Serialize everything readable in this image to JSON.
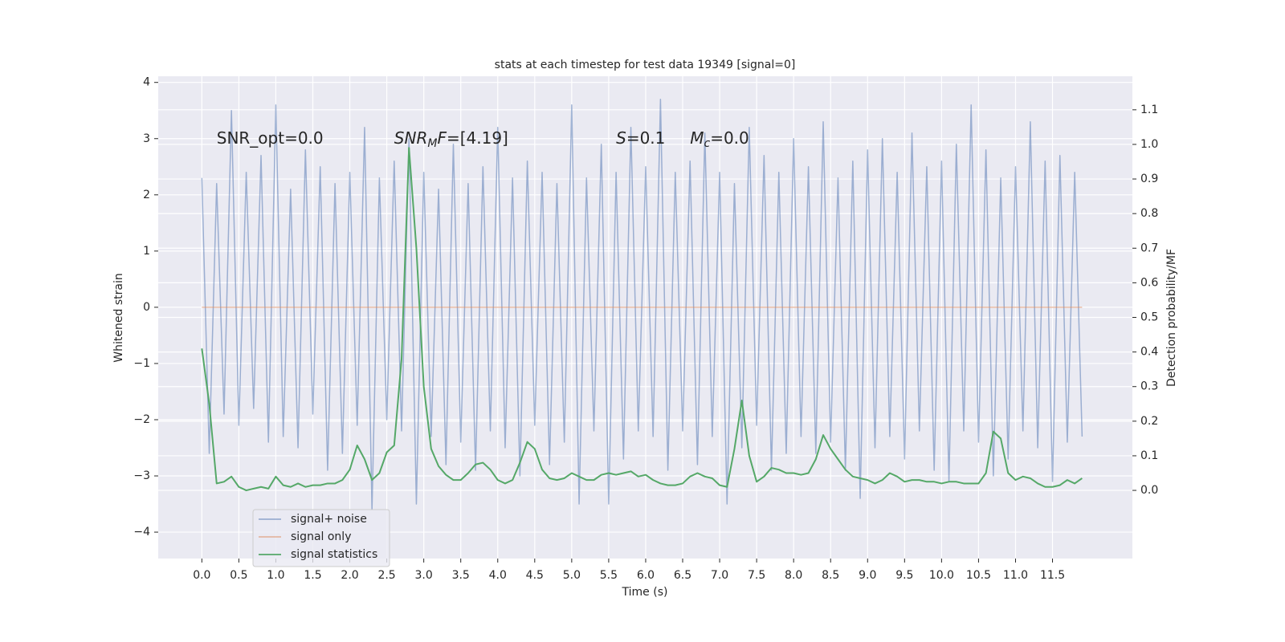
{
  "chart_data": {
    "type": "line",
    "title": "stats at each timestep for test data 19349 [signal=0]",
    "xlabel": "Time (s)",
    "ylabel": "Whitened strain",
    "y2label": "Detection probability/MF",
    "x": [
      0.0,
      0.1,
      0.2,
      0.3,
      0.4,
      0.5,
      0.6,
      0.7,
      0.8,
      0.9,
      1.0,
      1.1,
      1.2,
      1.3,
      1.4,
      1.5,
      1.6,
      1.7,
      1.8,
      1.9,
      2.0,
      2.1,
      2.2,
      2.3,
      2.4,
      2.5,
      2.6,
      2.7,
      2.8,
      2.9,
      3.0,
      3.1,
      3.2,
      3.3,
      3.4,
      3.5,
      3.6,
      3.7,
      3.8,
      3.9,
      4.0,
      4.1,
      4.2,
      4.3,
      4.4,
      4.5,
      4.6,
      4.7,
      4.8,
      4.9,
      5.0,
      5.1,
      5.2,
      5.3,
      5.4,
      5.5,
      5.6,
      5.7,
      5.8,
      5.9,
      6.0,
      6.1,
      6.2,
      6.3,
      6.4,
      6.5,
      6.6,
      6.7,
      6.8,
      6.9,
      7.0,
      7.1,
      7.2,
      7.3,
      7.4,
      7.5,
      7.6,
      7.7,
      7.8,
      7.9,
      8.0,
      8.1,
      8.2,
      8.3,
      8.4,
      8.5,
      8.6,
      8.7,
      8.8,
      8.9,
      9.0,
      9.1,
      9.2,
      9.3,
      9.4,
      9.5,
      9.6,
      9.7,
      9.8,
      9.9,
      10.0,
      10.1,
      10.2,
      10.3,
      10.4,
      10.5,
      10.6,
      10.7,
      10.8,
      10.9,
      11.0,
      11.1,
      11.2,
      11.3,
      11.4,
      11.5,
      11.6,
      11.7,
      11.8,
      11.9
    ],
    "series": [
      {
        "name": "signal+ noise",
        "color": "#4c72b0",
        "opacity": 0.5,
        "values": [
          2.3,
          -2.6,
          2.2,
          -1.9,
          3.5,
          -2.1,
          2.4,
          -1.8,
          2.7,
          -2.4,
          3.6,
          -2.3,
          2.1,
          -2.5,
          2.8,
          -1.9,
          2.5,
          -2.9,
          2.2,
          -2.6,
          2.4,
          -2.1,
          3.2,
          -3.6,
          2.3,
          -2.0,
          2.6,
          -2.2,
          3.0,
          -3.5,
          2.4,
          -2.3,
          2.1,
          -2.8,
          2.9,
          -2.4,
          2.2,
          -2.9,
          2.5,
          -2.2,
          3.2,
          -2.5,
          2.3,
          -3.0,
          2.6,
          -2.1,
          2.4,
          -2.8,
          2.2,
          -2.4,
          3.6,
          -3.5,
          2.3,
          -2.2,
          2.9,
          -3.5,
          2.4,
          -2.7,
          3.2,
          -2.2,
          2.5,
          -2.3,
          3.7,
          -2.9,
          2.4,
          -2.2,
          2.6,
          -2.8,
          3.1,
          -2.3,
          2.4,
          -3.5,
          2.2,
          -2.5,
          3.2,
          -2.1,
          2.7,
          -2.9,
          2.4,
          -2.6,
          3.0,
          -2.3,
          2.5,
          -2.6,
          3.3,
          -2.4,
          2.3,
          -2.9,
          2.6,
          -3.4,
          2.8,
          -2.5,
          3.0,
          -2.3,
          2.4,
          -2.7,
          3.1,
          -2.2,
          2.5,
          -2.9,
          2.6,
          -3.1,
          2.9,
          -2.2,
          3.6,
          -2.4,
          2.8,
          -3.0,
          2.3,
          -2.7,
          2.5,
          -2.2,
          3.3,
          -2.5,
          2.6,
          -3.1,
          2.7,
          -2.4,
          2.4,
          -2.3
        ]
      },
      {
        "name": "signal only",
        "color": "#dd8452",
        "opacity": 0.5,
        "x": [
          0.0,
          11.9
        ],
        "values": [
          0,
          0
        ]
      },
      {
        "name": "signal statistics",
        "color": "#55a868",
        "opacity": 1,
        "axis": "y2",
        "values": [
          0.41,
          0.25,
          0.02,
          0.025,
          0.04,
          0.01,
          0.0,
          0.005,
          0.01,
          0.005,
          0.04,
          0.015,
          0.01,
          0.02,
          0.01,
          0.015,
          0.015,
          0.02,
          0.02,
          0.03,
          0.06,
          0.13,
          0.09,
          0.03,
          0.05,
          0.11,
          0.13,
          0.38,
          0.99,
          0.7,
          0.3,
          0.12,
          0.07,
          0.045,
          0.03,
          0.03,
          0.05,
          0.075,
          0.08,
          0.06,
          0.03,
          0.02,
          0.03,
          0.08,
          0.14,
          0.12,
          0.06,
          0.035,
          0.03,
          0.035,
          0.05,
          0.04,
          0.03,
          0.03,
          0.045,
          0.05,
          0.045,
          0.05,
          0.055,
          0.04,
          0.045,
          0.03,
          0.02,
          0.015,
          0.015,
          0.02,
          0.04,
          0.05,
          0.04,
          0.035,
          0.015,
          0.01,
          0.12,
          0.26,
          0.1,
          0.025,
          0.04,
          0.065,
          0.06,
          0.05,
          0.05,
          0.045,
          0.05,
          0.09,
          0.16,
          0.12,
          0.09,
          0.06,
          0.04,
          0.035,
          0.03,
          0.02,
          0.03,
          0.05,
          0.04,
          0.025,
          0.03,
          0.03,
          0.025,
          0.025,
          0.02,
          0.025,
          0.025,
          0.02,
          0.02,
          0.02,
          0.05,
          0.17,
          0.15,
          0.05,
          0.03,
          0.04,
          0.035,
          0.02,
          0.01,
          0.01,
          0.015,
          0.03,
          0.02,
          0.035
        ]
      }
    ],
    "xlim": [
      -0.59,
      12.58
    ],
    "xticks": [
      {
        "value": 0,
        "label": "0.0"
      },
      0.5,
      {
        "value": 1,
        "label": "1.0"
      },
      1.5,
      {
        "value": 2,
        "label": "2.0"
      },
      2.5,
      {
        "value": 3,
        "label": "3.0"
      },
      3.5,
      {
        "value": 4,
        "label": "4.0"
      },
      4.5,
      {
        "value": 5,
        "label": "5.0"
      },
      5.5,
      {
        "value": 6,
        "label": "6.0"
      },
      6.5,
      {
        "value": 7,
        "label": "7.0"
      },
      7.5,
      {
        "value": 8,
        "label": "8.0"
      },
      8.5,
      {
        "value": 9,
        "label": "9.0"
      },
      9.5,
      {
        "value": 10,
        "label": "10.0"
      },
      10.5,
      {
        "value": 11,
        "label": "11.0"
      },
      11.5
    ],
    "ylim": [
      -4.47,
      4.11
    ],
    "yticks": [
      {
        "value": -4,
        "label": "−4"
      },
      {
        "value": -3,
        "label": "−3"
      },
      {
        "value": -2,
        "label": "−2"
      },
      {
        "value": -1,
        "label": "−1"
      },
      0,
      1,
      2,
      3,
      4
    ],
    "y2lim": [
      -0.197,
      1.197
    ],
    "y2ticks": [
      {
        "value": 0,
        "label": "0.0"
      },
      0.1,
      0.2,
      0.3,
      0.4,
      0.5,
      0.6,
      0.7,
      0.8,
      0.9,
      {
        "value": 1,
        "label": "1.0"
      },
      1.1
    ],
    "grid": true,
    "legend": "lower left",
    "annotations": [
      {
        "x": 0.2,
        "y": 3,
        "parts": [
          {
            "text": "SNR_opt=0.0"
          }
        ]
      },
      {
        "x": 2.6,
        "y": 3,
        "parts": [
          {
            "text": "SNR",
            "italic": true
          },
          {
            "text": "M",
            "italic": true,
            "sub": true
          },
          {
            "text": "F",
            "italic": true
          },
          {
            "text": "=[4.19]"
          }
        ]
      },
      {
        "x": 5.6,
        "y": 3,
        "parts": [
          {
            "text": "S",
            "italic": true
          },
          {
            "text": "=0.1"
          }
        ]
      },
      {
        "x": 6.6,
        "y": 3,
        "parts": [
          {
            "text": "M",
            "italic": true
          },
          {
            "text": "c",
            "italic": true,
            "sub": true
          },
          {
            "text": "=0.0"
          }
        ]
      }
    ]
  }
}
